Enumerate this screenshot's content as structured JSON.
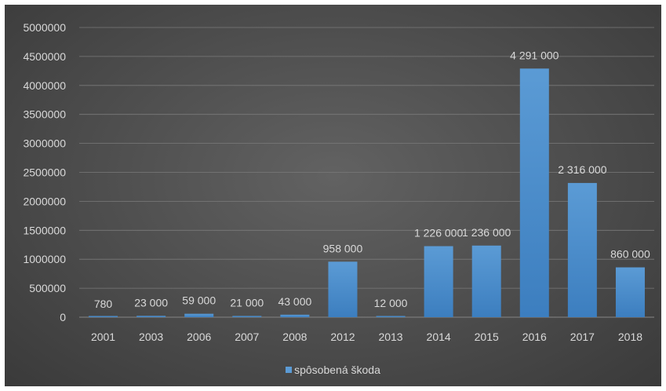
{
  "chart_data": {
    "type": "bar",
    "categories": [
      "2001",
      "2003",
      "2006",
      "2007",
      "2008",
      "2012",
      "2013",
      "2014",
      "2015",
      "2016",
      "2017",
      "2018"
    ],
    "series": [
      {
        "name": "spôsobená škoda",
        "values": [
          780,
          23000,
          59000,
          21000,
          43000,
          958000,
          12000,
          1226000,
          1236000,
          4291000,
          2316000,
          860000
        ],
        "data_labels": [
          "780",
          "23 000",
          "59 000",
          "21 000",
          "43 000",
          "958 000",
          "12 000",
          "1 226 000",
          "1 236 000",
          "4 291 000",
          "2 316 000",
          "860 000"
        ]
      }
    ],
    "y_ticks": [
      "0",
      "500000",
      "1000000",
      "1500000",
      "2000000",
      "2500000",
      "3000000",
      "3500000",
      "4000000",
      "4500000",
      "5000000"
    ],
    "ylim": [
      0,
      5000000
    ],
    "title": "",
    "xlabel": "",
    "ylabel": "",
    "grid": true,
    "legend_position": "bottom",
    "colors": {
      "bar": "#5b9bd5",
      "bar_dark": "#3c7ebf",
      "grid": "#7a7a7a",
      "text": "#d9d9d9"
    }
  }
}
